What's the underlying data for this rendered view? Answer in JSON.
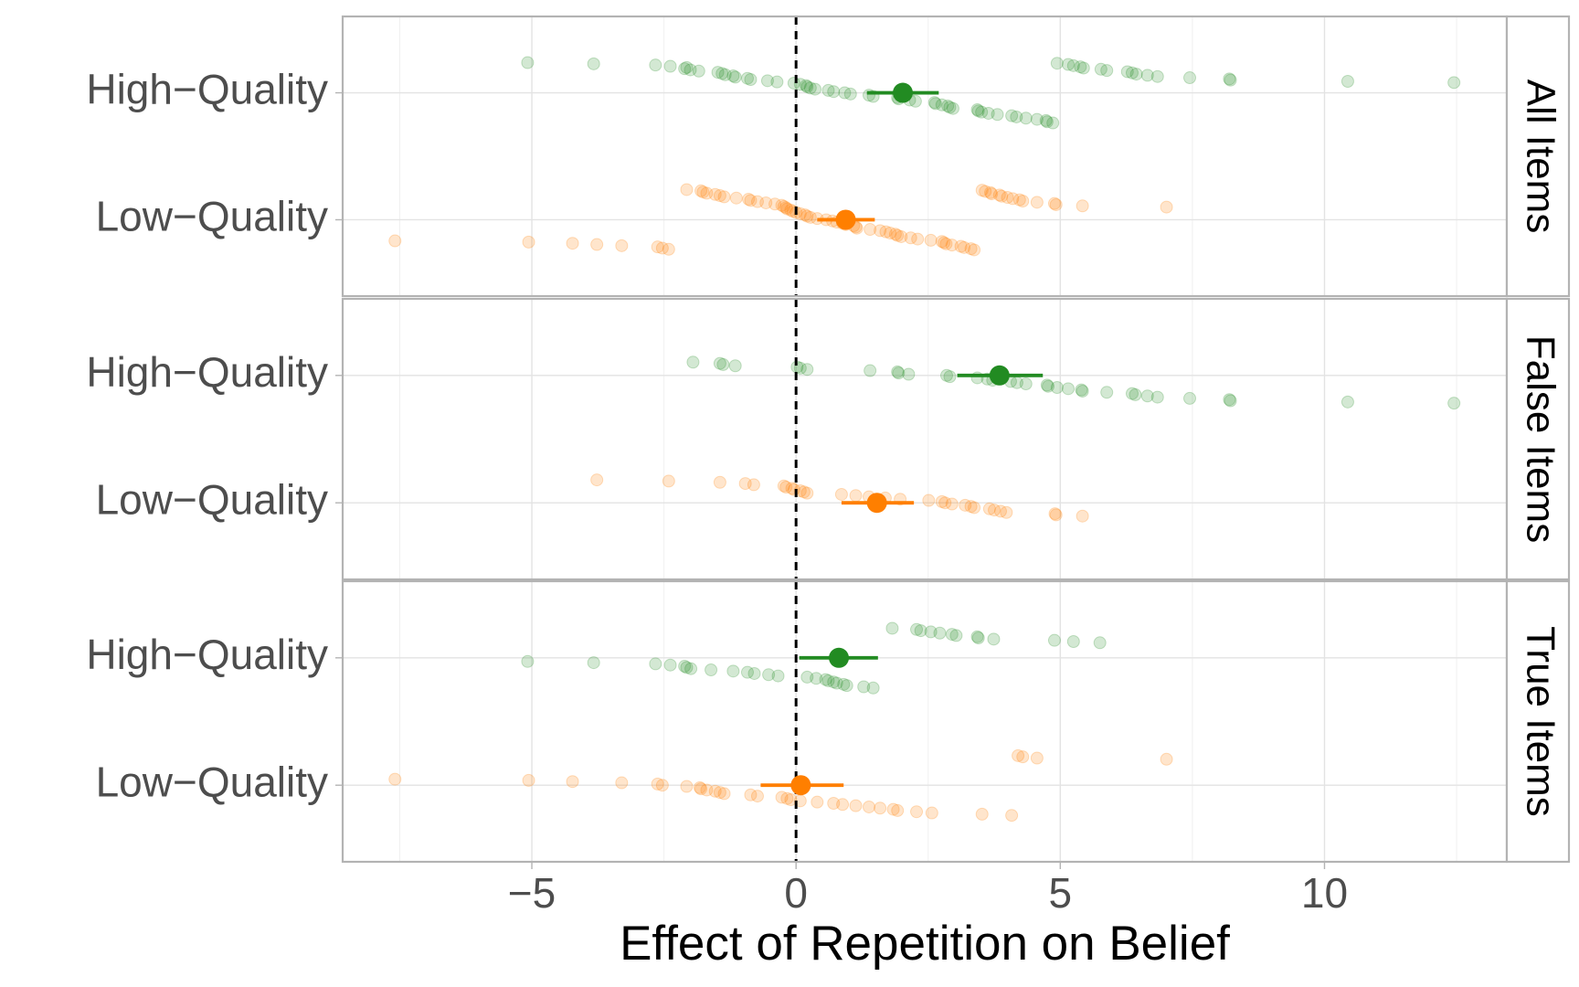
{
  "chart_data": {
    "type": "dotplot",
    "xlabel": "Effect of Repetition on Belief",
    "xlim": [
      -8.58,
      13.45
    ],
    "xticks": [
      {
        "value": -5,
        "label": "−5"
      },
      0,
      5,
      10
    ],
    "xminorticks": [
      -7.5,
      -2.5,
      2.5,
      7.5,
      12.5
    ],
    "grid": true,
    "vline": 0,
    "categories": [
      "High−Quality",
      "Low−Quality"
    ],
    "panels": [
      {
        "strip": "All Items",
        "groups": [
          {
            "color": "#228B22",
            "mean": 2.02,
            "ci_low": 1.34,
            "ci_high": 2.7,
            "points": [
              -5.08,
              -3.83,
              -2.66,
              -2.38,
              -2.07,
              -2.11,
              -2.0,
              -1.84,
              -1.48,
              -1.4,
              -1.34,
              -1.19,
              -1.15,
              -0.92,
              -0.86,
              -0.54,
              -0.36,
              -0.04,
              0.08,
              0.19,
              0.21,
              0.27,
              0.36,
              0.61,
              0.71,
              0.92,
              1.03,
              1.38,
              1.46,
              1.92,
              1.94,
              2.15,
              2.26,
              2.62,
              2.64,
              2.76,
              2.87,
              2.91,
              2.97,
              3.43,
              3.45,
              3.51,
              3.64,
              3.81,
              4.08,
              4.17,
              4.35,
              4.56,
              4.73,
              4.75,
              4.86,
              4.94,
              5.15,
              5.25,
              5.38,
              5.44,
              5.77,
              5.88,
              6.27,
              6.36,
              6.44,
              6.65,
              6.84,
              7.45,
              8.2,
              8.22,
              10.44,
              12.45
            ]
          },
          {
            "color": "#FF7F00",
            "mean": 0.94,
            "ci_low": 0.4,
            "ci_high": 1.49,
            "points": [
              -7.59,
              -5.06,
              -4.23,
              -3.77,
              -3.3,
              -2.62,
              -2.53,
              -2.41,
              -2.07,
              -1.8,
              -1.76,
              -1.69,
              -1.53,
              -1.44,
              -1.36,
              -1.13,
              -0.9,
              -0.86,
              -0.73,
              -0.57,
              -0.4,
              -0.27,
              -0.23,
              -0.19,
              -0.17,
              -0.1,
              -0.06,
              0.0,
              0.08,
              0.17,
              0.21,
              0.27,
              0.4,
              0.57,
              0.69,
              0.77,
              0.88,
              0.94,
              1.09,
              1.13,
              1.15,
              1.4,
              1.59,
              1.7,
              1.78,
              1.88,
              1.92,
              1.99,
              2.17,
              2.3,
              2.55,
              2.76,
              2.8,
              2.84,
              2.95,
              3.12,
              3.18,
              3.31,
              3.37,
              3.52,
              3.58,
              3.68,
              3.7,
              3.85,
              3.89,
              4.0,
              4.1,
              4.23,
              4.29,
              4.56,
              4.89,
              4.92,
              5.42,
              7.01
            ]
          }
        ]
      },
      {
        "strip": "False Items",
        "groups": [
          {
            "color": "#228B22",
            "mean": 3.85,
            "ci_low": 3.05,
            "ci_high": 4.67,
            "points": [
              -1.95,
              -1.44,
              -1.38,
              -1.15,
              0.02,
              0.08,
              0.21,
              1.4,
              1.92,
              1.94,
              2.13,
              2.85,
              2.91,
              3.43,
              3.62,
              3.72,
              4.06,
              4.18,
              4.35,
              4.75,
              4.77,
              4.94,
              5.15,
              5.4,
              5.42,
              5.88,
              6.36,
              6.42,
              6.65,
              6.84,
              7.45,
              8.2,
              8.22,
              10.44,
              12.45
            ]
          },
          {
            "color": "#FF7F00",
            "mean": 1.53,
            "ci_low": 0.86,
            "ci_high": 2.23,
            "points": [
              -3.77,
              -2.41,
              -1.44,
              -0.96,
              -0.8,
              -0.23,
              -0.19,
              -0.08,
              -0.04,
              0.08,
              0.15,
              0.21,
              0.86,
              1.13,
              1.38,
              1.69,
              1.97,
              2.51,
              2.76,
              2.82,
              2.95,
              3.2,
              3.31,
              3.37,
              3.66,
              3.75,
              3.87,
              3.98,
              4.9,
              4.92,
              5.42
            ]
          }
        ]
      },
      {
        "strip": "True Items",
        "groups": [
          {
            "color": "#228B22",
            "mean": 0.81,
            "ci_low": 0.06,
            "ci_high": 1.55,
            "points": [
              -5.08,
              -3.83,
              -2.66,
              -2.38,
              -2.11,
              -2.07,
              -1.99,
              -1.61,
              -1.19,
              -0.92,
              -0.79,
              -0.52,
              -0.34,
              0.21,
              0.38,
              0.56,
              0.61,
              0.71,
              0.77,
              0.9,
              0.96,
              1.28,
              1.46,
              1.82,
              2.28,
              2.36,
              2.55,
              2.72,
              2.95,
              3.03,
              3.43,
              3.45,
              3.74,
              4.89,
              5.25,
              5.75
            ]
          },
          {
            "color": "#FF7F00",
            "mean": 0.09,
            "ci_low": -0.67,
            "ci_high": 0.9,
            "points": [
              -7.59,
              -5.06,
              -4.23,
              -3.3,
              -2.62,
              -2.53,
              -2.07,
              -1.82,
              -1.8,
              -1.69,
              -1.53,
              -1.44,
              -1.36,
              -0.86,
              -0.73,
              -0.27,
              -0.17,
              -0.1,
              0.08,
              0.4,
              0.71,
              0.88,
              1.13,
              1.38,
              1.59,
              1.84,
              1.92,
              2.28,
              2.57,
              3.52,
              4.08,
              4.2,
              4.29,
              4.56,
              7.01
            ]
          }
        ]
      }
    ]
  }
}
